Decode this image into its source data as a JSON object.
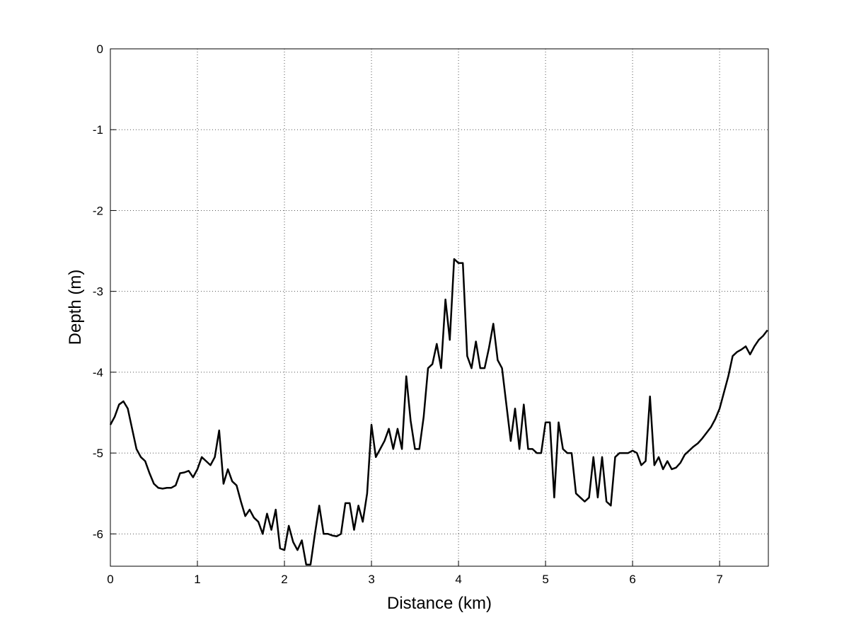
{
  "chart_data": {
    "type": "line",
    "xlabel": "Distance (km)",
    "ylabel": "Depth (m)",
    "color": "#000000",
    "grid": true,
    "xlim": [
      0,
      7.56
    ],
    "ylim": [
      -6.4,
      0
    ],
    "xticks": [
      0,
      1,
      2,
      3,
      4,
      5,
      6,
      7
    ],
    "yticks": [
      0,
      -1,
      -2,
      -3,
      -4,
      -5,
      -6
    ],
    "x": [
      0,
      0.05,
      0.1,
      0.15,
      0.2,
      0.25,
      0.3,
      0.35,
      0.4,
      0.45,
      0.5,
      0.55,
      0.6,
      0.65,
      0.7,
      0.75,
      0.8,
      0.85,
      0.9,
      0.95,
      1,
      1.05,
      1.1,
      1.15,
      1.2,
      1.25,
      1.3,
      1.35,
      1.4,
      1.45,
      1.5,
      1.55,
      1.6,
      1.65,
      1.7,
      1.75,
      1.8,
      1.85,
      1.9,
      1.95,
      2,
      2.05,
      2.1,
      2.15,
      2.2,
      2.25,
      2.3,
      2.35,
      2.4,
      2.45,
      2.5,
      2.55,
      2.6,
      2.65,
      2.7,
      2.75,
      2.8,
      2.85,
      2.9,
      2.95,
      3,
      3.05,
      3.1,
      3.15,
      3.2,
      3.25,
      3.3,
      3.35,
      3.4,
      3.45,
      3.5,
      3.55,
      3.6,
      3.65,
      3.7,
      3.75,
      3.8,
      3.85,
      3.9,
      3.95,
      4,
      4.05,
      4.1,
      4.15,
      4.2,
      4.25,
      4.3,
      4.35,
      4.4,
      4.45,
      4.5,
      4.55,
      4.6,
      4.65,
      4.7,
      4.75,
      4.8,
      4.85,
      4.9,
      4.95,
      5,
      5.05,
      5.1,
      5.15,
      5.2,
      5.25,
      5.3,
      5.35,
      5.4,
      5.45,
      5.5,
      5.55,
      5.6,
      5.65,
      5.7,
      5.75,
      5.8,
      5.85,
      5.9,
      5.95,
      6,
      6.05,
      6.1,
      6.15,
      6.2,
      6.25,
      6.3,
      6.35,
      6.4,
      6.45,
      6.5,
      6.55,
      6.6,
      6.65,
      6.7,
      6.75,
      6.8,
      6.85,
      6.9,
      6.95,
      7,
      7.05,
      7.1,
      7.15,
      7.2,
      7.25,
      7.3,
      7.35,
      7.4,
      7.45,
      7.5,
      7.55
    ],
    "values": [
      -4.65,
      -4.55,
      -4.4,
      -4.36,
      -4.45,
      -4.7,
      -4.95,
      -5.05,
      -5.1,
      -5.25,
      -5.38,
      -5.43,
      -5.44,
      -5.43,
      -5.43,
      -5.4,
      -5.25,
      -5.24,
      -5.22,
      -5.3,
      -5.2,
      -5.05,
      -5.1,
      -5.15,
      -5.05,
      -4.72,
      -5.38,
      -5.2,
      -5.35,
      -5.4,
      -5.6,
      -5.78,
      -5.7,
      -5.8,
      -5.85,
      -6,
      -5.75,
      -5.95,
      -5.7,
      -6.18,
      -6.2,
      -5.9,
      -6.1,
      -6.2,
      -6.08,
      -6.38,
      -6.38,
      -6,
      -5.65,
      -6,
      -6,
      -6.02,
      -6.03,
      -6,
      -5.62,
      -5.62,
      -5.95,
      -5.65,
      -5.85,
      -5.5,
      -4.65,
      -5.05,
      -4.95,
      -4.85,
      -4.7,
      -4.95,
      -4.7,
      -4.95,
      -4.05,
      -4.6,
      -4.95,
      -4.95,
      -4.55,
      -3.95,
      -3.9,
      -3.65,
      -3.95,
      -3.1,
      -3.6,
      -2.6,
      -2.65,
      -2.65,
      -3.8,
      -3.95,
      -3.62,
      -3.95,
      -3.95,
      -3.7,
      -3.4,
      -3.85,
      -3.95,
      -4.4,
      -4.85,
      -4.45,
      -4.95,
      -4.4,
      -4.95,
      -4.95,
      -5,
      -5,
      -4.62,
      -4.62,
      -5.55,
      -4.62,
      -4.95,
      -5,
      -5,
      -5.5,
      -5.55,
      -5.6,
      -5.55,
      -5.05,
      -5.55,
      -5.05,
      -5.6,
      -5.65,
      -5.05,
      -5,
      -5,
      -5,
      -4.97,
      -5,
      -5.15,
      -5.1,
      -4.3,
      -5.15,
      -5.05,
      -5.2,
      -5.1,
      -5.2,
      -5.18,
      -5.12,
      -5.02,
      -4.97,
      -4.92,
      -4.88,
      -4.82,
      -4.75,
      -4.68,
      -4.58,
      -4.45,
      -4.25,
      -4.05,
      -3.8,
      -3.75,
      -3.72,
      -3.68,
      -3.78,
      -3.68,
      -3.6,
      -3.55,
      -3.48
    ]
  }
}
